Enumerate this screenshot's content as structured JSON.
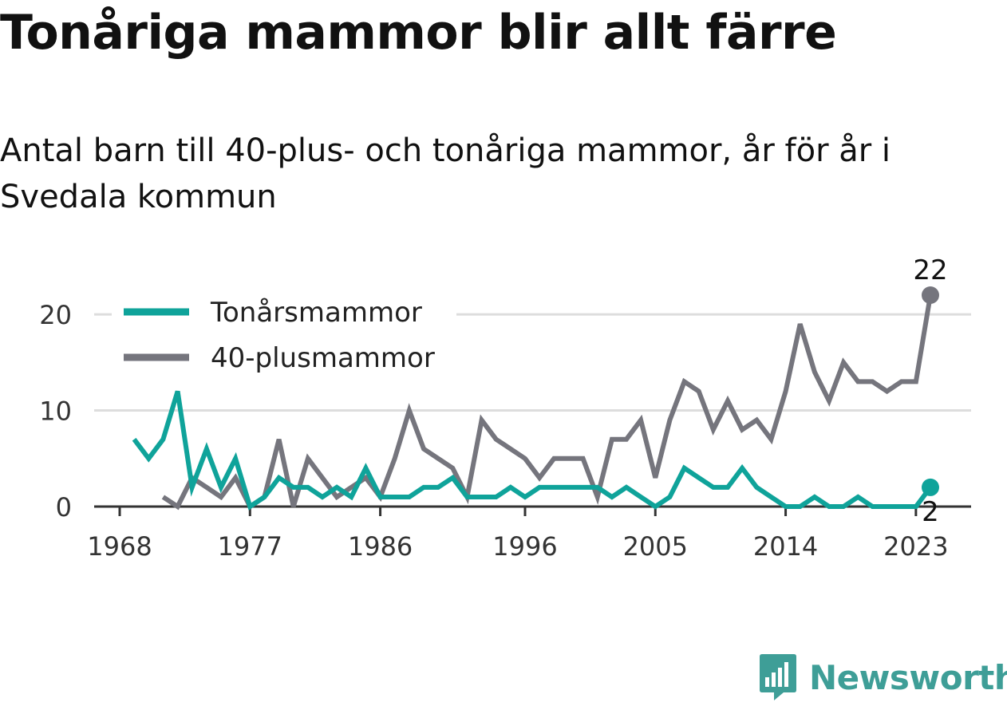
{
  "title": "Tonåriga mammor blir allt färre",
  "subtitle": "Antal barn till 40-plus- och tonåriga mammor, år för år i Svedala kommun",
  "brand": {
    "name": "Newsworthy",
    "icon": "newsworthy-logo-icon",
    "color": "#3e9e97"
  },
  "chart_data": {
    "type": "line",
    "x_ticks": [
      1968,
      1977,
      1986,
      1996,
      2005,
      2014,
      2023
    ],
    "y_ticks": [
      0,
      10,
      20
    ],
    "xlim": [
      1967,
      2026
    ],
    "ylim": [
      0,
      22
    ],
    "grid": true,
    "legend_position": "top-left",
    "series": [
      {
        "name": "Tonårsmammor",
        "color": "#0fa39a",
        "end_label": "2",
        "points": [
          [
            1969,
            7
          ],
          [
            1970,
            5
          ],
          [
            1971,
            7
          ],
          [
            1972,
            12
          ],
          [
            1973,
            2
          ],
          [
            1974,
            6
          ],
          [
            1975,
            2
          ],
          [
            1976,
            5
          ],
          [
            1977,
            0
          ],
          [
            1978,
            1
          ],
          [
            1979,
            3
          ],
          [
            1980,
            2
          ],
          [
            1981,
            2
          ],
          [
            1982,
            1
          ],
          [
            1983,
            2
          ],
          [
            1984,
            1
          ],
          [
            1985,
            4
          ],
          [
            1986,
            1
          ],
          [
            1987,
            1
          ],
          [
            1988,
            1
          ],
          [
            1989,
            2
          ],
          [
            1990,
            2
          ],
          [
            1991,
            3
          ],
          [
            1992,
            1
          ],
          [
            1993,
            1
          ],
          [
            1994,
            1
          ],
          [
            1995,
            2
          ],
          [
            1996,
            1
          ],
          [
            1997,
            2
          ],
          [
            1998,
            2
          ],
          [
            1999,
            2
          ],
          [
            2000,
            2
          ],
          [
            2001,
            2
          ],
          [
            2002,
            1
          ],
          [
            2003,
            2
          ],
          [
            2004,
            1
          ],
          [
            2005,
            0
          ],
          [
            2006,
            1
          ],
          [
            2007,
            4
          ],
          [
            2008,
            3
          ],
          [
            2009,
            2
          ],
          [
            2010,
            2
          ],
          [
            2011,
            4
          ],
          [
            2012,
            2
          ],
          [
            2013,
            1
          ],
          [
            2014,
            0
          ],
          [
            2015,
            0
          ],
          [
            2016,
            1
          ],
          [
            2017,
            0
          ],
          [
            2018,
            0
          ],
          [
            2019,
            1
          ],
          [
            2020,
            0
          ],
          [
            2021,
            0
          ],
          [
            2022,
            0
          ],
          [
            2023,
            0
          ],
          [
            2024,
            2
          ]
        ]
      },
      {
        "name": "40-plusmammor",
        "color": "#75757d",
        "end_label": "22",
        "points": [
          [
            1971,
            1
          ],
          [
            1972,
            0
          ],
          [
            1973,
            3
          ],
          [
            1974,
            2
          ],
          [
            1975,
            1
          ],
          [
            1976,
            3
          ],
          [
            1977,
            0
          ],
          [
            1978,
            1
          ],
          [
            1979,
            7
          ],
          [
            1980,
            0
          ],
          [
            1981,
            5
          ],
          [
            1982,
            3
          ],
          [
            1983,
            1
          ],
          [
            1984,
            2
          ],
          [
            1985,
            3
          ],
          [
            1986,
            1
          ],
          [
            1987,
            5
          ],
          [
            1988,
            10
          ],
          [
            1989,
            6
          ],
          [
            1990,
            5
          ],
          [
            1991,
            4
          ],
          [
            1992,
            1
          ],
          [
            1993,
            9
          ],
          [
            1994,
            7
          ],
          [
            1995,
            6
          ],
          [
            1996,
            5
          ],
          [
            1997,
            3
          ],
          [
            1998,
            5
          ],
          [
            1999,
            5
          ],
          [
            2000,
            5
          ],
          [
            2001,
            1
          ],
          [
            2002,
            7
          ],
          [
            2003,
            7
          ],
          [
            2004,
            9
          ],
          [
            2005,
            3
          ],
          [
            2006,
            9
          ],
          [
            2007,
            13
          ],
          [
            2008,
            12
          ],
          [
            2009,
            8
          ],
          [
            2010,
            11
          ],
          [
            2011,
            8
          ],
          [
            2012,
            9
          ],
          [
            2013,
            7
          ],
          [
            2014,
            12
          ],
          [
            2015,
            19
          ],
          [
            2016,
            14
          ],
          [
            2017,
            11
          ],
          [
            2018,
            15
          ],
          [
            2019,
            13
          ],
          [
            2020,
            13
          ],
          [
            2021,
            12
          ],
          [
            2022,
            13
          ],
          [
            2023,
            13
          ],
          [
            2024,
            22
          ]
        ]
      }
    ]
  }
}
